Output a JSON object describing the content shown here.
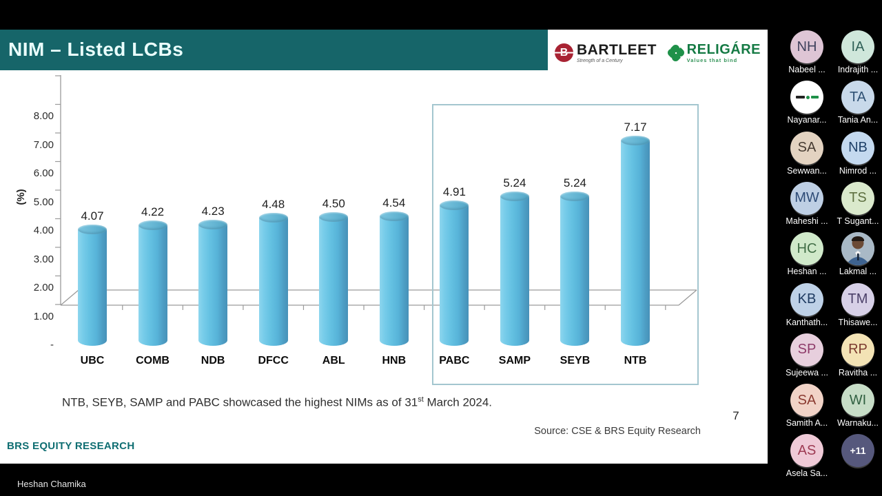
{
  "window": {
    "presenter_label": "Heshan Chamika"
  },
  "slide": {
    "title": "NIM – Listed LCBs",
    "page_number": "7",
    "footnote": {
      "pre": "NTB, SEYB, SAMP and PABC showcased the highest NIMs as of 31",
      "sup": "st",
      "post": " March 2024."
    },
    "source": "Source: CSE & BRS Equity Research",
    "brand_footer": "BRS EQUITY RESEARCH",
    "logos": {
      "bartleet": {
        "initial": "B",
        "name": "BARTLEET",
        "tagline": "Strength of a Century",
        "accent": "#a82333"
      },
      "religare": {
        "name": "RELIGÁRE",
        "tagline": "Values that bind",
        "accent": "#1f9149"
      }
    }
  },
  "chart_data": {
    "type": "bar",
    "subtype": "3d-cylinder",
    "categories": [
      "UBC",
      "COMB",
      "NDB",
      "DFCC",
      "ABL",
      "HNB",
      "PABC",
      "SAMP",
      "SEYB",
      "NTB"
    ],
    "values": [
      4.07,
      4.22,
      4.23,
      4.48,
      4.5,
      4.54,
      4.91,
      5.24,
      5.24,
      7.17
    ],
    "data_labels": [
      "4.07",
      "4.22",
      "4.23",
      "4.48",
      "4.50",
      "4.54",
      "4.91",
      "5.24",
      "5.24",
      "7.17"
    ],
    "title": "",
    "xlabel": "",
    "ylabel": "(%)",
    "ylim": [
      0,
      8
    ],
    "ytick_labels": [
      "8.00",
      "7.00",
      "6.00",
      "5.00",
      "4.00",
      "3.00",
      "2.00",
      "1.00",
      "-"
    ],
    "grid": false,
    "legend": false,
    "bar_color": "#64c1e2",
    "highlight_group": [
      "PABC",
      "SAMP",
      "SEYB",
      "NTB"
    ],
    "highlight_box_color": "#a3c6cf"
  },
  "participants": {
    "list": [
      {
        "type": "initials",
        "initials": "NH",
        "name": "Nabeel ...",
        "bg": "#dec5d5",
        "fg": "#3f415c"
      },
      {
        "type": "initials",
        "initials": "IA",
        "name": "Indrajith ...",
        "bg": "#cfe7db",
        "fg": "#2f6057"
      },
      {
        "type": "logo",
        "initials": "",
        "name": "Nayanar...",
        "bg": "#ffffff",
        "fg": "#222222"
      },
      {
        "type": "initials",
        "initials": "TA",
        "name": "Tania An...",
        "bg": "#c8d9ea",
        "fg": "#2f5174"
      },
      {
        "type": "initials",
        "initials": "SA",
        "name": "Sewwan...",
        "bg": "#e3d3c1",
        "fg": "#473c32"
      },
      {
        "type": "initials",
        "initials": "NB",
        "name": "Nimrod ...",
        "bg": "#c4d9ef",
        "fg": "#204169"
      },
      {
        "type": "initials",
        "initials": "MW",
        "name": "Maheshi ...",
        "bg": "#becfe4",
        "fg": "#2d4b76"
      },
      {
        "type": "initials",
        "initials": "TS",
        "name": "T Sugant...",
        "bg": "#dae9cc",
        "fg": "#5e7040"
      },
      {
        "type": "initials",
        "initials": "HC",
        "name": "Heshan ...",
        "bg": "#d0e9ca",
        "fg": "#406d45"
      },
      {
        "type": "photo",
        "initials": "",
        "name": "Lakmal ...",
        "bg": "#a9b9c6",
        "fg": "#222222"
      },
      {
        "type": "initials",
        "initials": "KB",
        "name": "Kanthath...",
        "bg": "#bed1e7",
        "fg": "#1e3b61"
      },
      {
        "type": "initials",
        "initials": "TM",
        "name": "Thisawe...",
        "bg": "#d7d0e7",
        "fg": "#4b4069"
      },
      {
        "type": "initials",
        "initials": "SP",
        "name": "Sujeewa ...",
        "bg": "#e7cfdd",
        "fg": "#8e3b6a"
      },
      {
        "type": "initials",
        "initials": "RP",
        "name": "Ravitha ...",
        "bg": "#f3e3b5",
        "fg": "#7b3b2f"
      },
      {
        "type": "initials",
        "initials": "SA",
        "name": "Samith A...",
        "bg": "#f1d3c7",
        "fg": "#8b3b31"
      },
      {
        "type": "initials",
        "initials": "WI",
        "name": "Warnaku...",
        "bg": "#c7ddc7",
        "fg": "#306041"
      },
      {
        "type": "initials",
        "initials": "AS",
        "name": "Asela Sa...",
        "bg": "#efcad7",
        "fg": "#9d3b53"
      },
      {
        "type": "overflow",
        "initials": "+11",
        "name": "",
        "bg": "#56587c",
        "fg": "#ffffff"
      }
    ]
  },
  "colors": {
    "titlebar": "#166569",
    "title_text": "#eafffd",
    "brand_teal": "#0f6e72",
    "background": "#000000"
  }
}
